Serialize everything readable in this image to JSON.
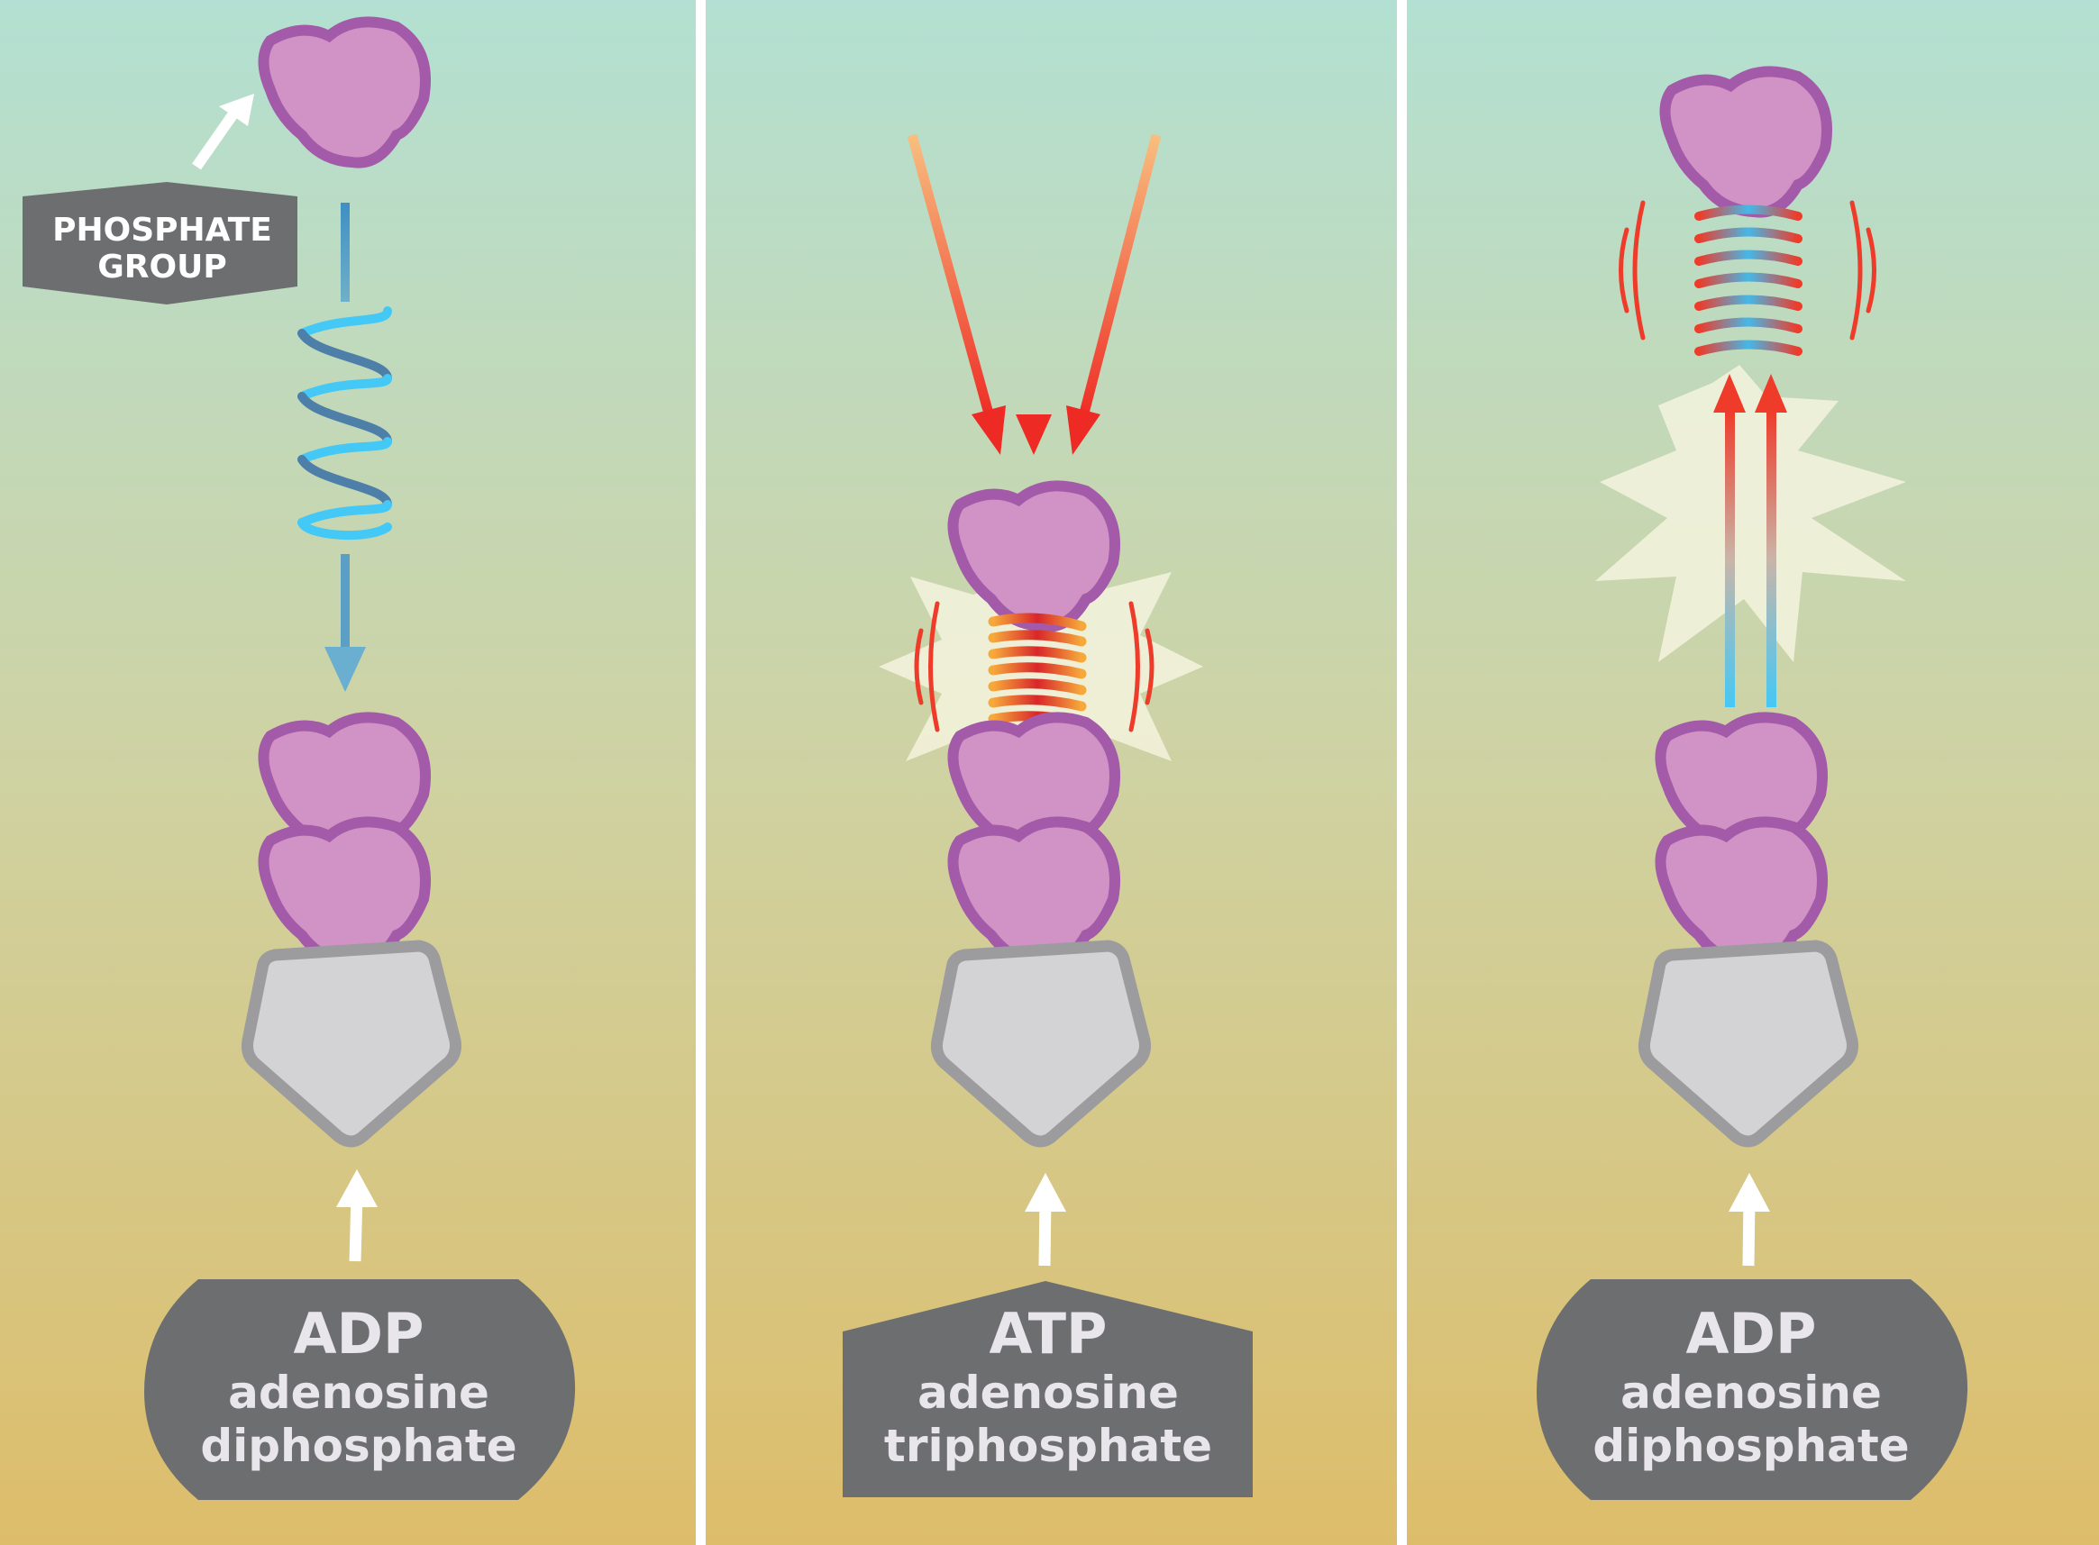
{
  "phosphate_label": {
    "line1": "PHOSPHATE",
    "line2": "GROUP"
  },
  "panels": [
    {
      "title": "ADP",
      "line1": "adenosine",
      "line2": "diphosphate"
    },
    {
      "title": "ATP",
      "line1": "adenosine",
      "line2": "triphosphate"
    },
    {
      "title": "ADP",
      "line1": "adenosine",
      "line2": "diphosphate"
    }
  ],
  "colors": {
    "background_top": "#b3e0d2",
    "background_bottom": "#ddbd6a",
    "divider": "#ffffff",
    "phosphate_fill": "#d193c5",
    "phosphate_stroke": "#a35aa8",
    "adenosine_fill": "#d3d3d6",
    "adenosine_stroke": "#9c9c9e",
    "label_box": "#6d6e70",
    "spring_blue": "#44c8f5",
    "spring_red": "#ee3b2a",
    "energy_orange": "#f6a96b",
    "burst": "#f5f3de"
  }
}
